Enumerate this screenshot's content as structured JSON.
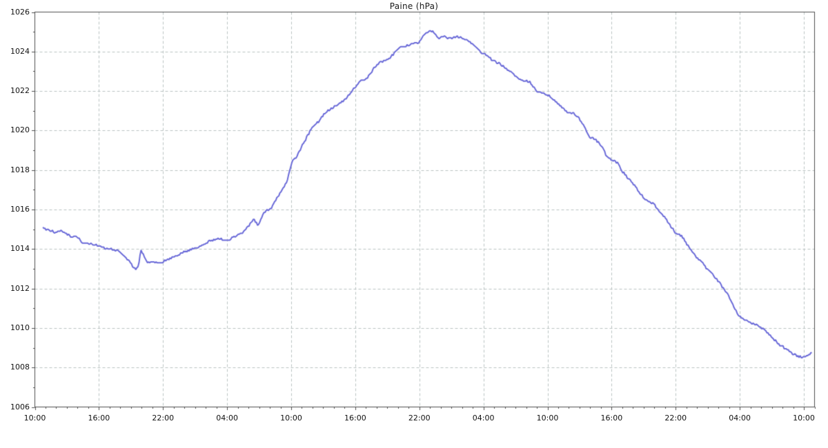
{
  "title": "Paine (hPa)",
  "colors": {
    "line": "#6a6ad8",
    "grid": "#b9c2c1",
    "axis": "#4c4c4c",
    "text": "#111111",
    "bg_top": "#cbdcdc",
    "bg_mid": "#f3f9f8",
    "bg_bottom": "#c4d7cf"
  },
  "chart_data": {
    "type": "line",
    "title": "Paine (hPa)",
    "xlabel": "",
    "ylabel": "",
    "legend_position": "none",
    "grid": true,
    "ylim": [
      1006,
      1026
    ],
    "y_ticks": [
      1006,
      1008,
      1010,
      1012,
      1014,
      1016,
      1018,
      1020,
      1022,
      1024,
      1026
    ],
    "y_minor_step": 1,
    "xlim_hours": [
      0,
      73
    ],
    "x_tick_hours": [
      0,
      6,
      12,
      18,
      24,
      30,
      36,
      42,
      48,
      54,
      60,
      66,
      72
    ],
    "x_tick_labels": [
      "10:00",
      "16:00",
      "22:00",
      "04:00",
      "10:00",
      "16:00",
      "22:00",
      "04:00",
      "10:00",
      "16:00",
      "22:00",
      "04:00",
      "10:00"
    ],
    "x_minor_step_hours": 1,
    "noise_amplitude_hpa": 0.05,
    "quantization_hpa": 0.05,
    "sample_step_hours": 0.1,
    "series": [
      {
        "name": "Paine",
        "unit": "hPa",
        "points": [
          [
            0.75,
            1015.1
          ],
          [
            1.2,
            1014.95
          ],
          [
            2,
            1014.85
          ],
          [
            2.6,
            1014.9
          ],
          [
            3,
            1014.75
          ],
          [
            3.5,
            1014.6
          ],
          [
            3.9,
            1014.65
          ],
          [
            4.4,
            1014.35
          ],
          [
            5,
            1014.3
          ],
          [
            5.6,
            1014.2
          ],
          [
            6,
            1014.15
          ],
          [
            6.6,
            1014.05
          ],
          [
            7.2,
            1014.0
          ],
          [
            7.8,
            1013.9
          ],
          [
            8.3,
            1013.7
          ],
          [
            8.8,
            1013.4
          ],
          [
            9.2,
            1013.1
          ],
          [
            9.5,
            1012.95
          ],
          [
            9.7,
            1013.2
          ],
          [
            9.95,
            1013.95
          ],
          [
            10.2,
            1013.7
          ],
          [
            10.5,
            1013.3
          ],
          [
            11,
            1013.4
          ],
          [
            11.4,
            1013.3
          ],
          [
            12,
            1013.35
          ],
          [
            12.5,
            1013.5
          ],
          [
            13,
            1013.6
          ],
          [
            13.6,
            1013.75
          ],
          [
            14,
            1013.85
          ],
          [
            14.5,
            1013.95
          ],
          [
            15,
            1014.05
          ],
          [
            15.5,
            1014.1
          ],
          [
            16,
            1014.3
          ],
          [
            16.6,
            1014.45
          ],
          [
            17.3,
            1014.55
          ],
          [
            17.9,
            1014.4
          ],
          [
            18.5,
            1014.55
          ],
          [
            19.3,
            1014.75
          ],
          [
            20.1,
            1015.2
          ],
          [
            20.5,
            1015.55
          ],
          [
            20.9,
            1015.2
          ],
          [
            21.4,
            1015.8
          ],
          [
            21.7,
            1015.95
          ],
          [
            22.1,
            1016.05
          ],
          [
            22.4,
            1016.35
          ],
          [
            22.8,
            1016.7
          ],
          [
            23.2,
            1017.0
          ],
          [
            23.6,
            1017.4
          ],
          [
            23.85,
            1017.95
          ],
          [
            24.1,
            1018.5
          ],
          [
            24.5,
            1018.65
          ],
          [
            25,
            1019.2
          ],
          [
            25.5,
            1019.7
          ],
          [
            26,
            1020.2
          ],
          [
            26.5,
            1020.4
          ],
          [
            27.1,
            1020.85
          ],
          [
            27.5,
            1021.0
          ],
          [
            28,
            1021.2
          ],
          [
            28.5,
            1021.4
          ],
          [
            29,
            1021.55
          ],
          [
            29.5,
            1021.85
          ],
          [
            30,
            1022.2
          ],
          [
            30.5,
            1022.5
          ],
          [
            31,
            1022.6
          ],
          [
            31.5,
            1022.95
          ],
          [
            32,
            1023.35
          ],
          [
            32.5,
            1023.5
          ],
          [
            33,
            1023.6
          ],
          [
            33.5,
            1023.8
          ],
          [
            34,
            1024.15
          ],
          [
            34.5,
            1024.25
          ],
          [
            35,
            1024.3
          ],
          [
            35.5,
            1024.4
          ],
          [
            36,
            1024.45
          ],
          [
            36.5,
            1024.9
          ],
          [
            37,
            1025.05
          ],
          [
            37.4,
            1025.0
          ],
          [
            37.8,
            1024.65
          ],
          [
            38.2,
            1024.75
          ],
          [
            39,
            1024.7
          ],
          [
            39.5,
            1024.75
          ],
          [
            40,
            1024.7
          ],
          [
            40.5,
            1024.6
          ],
          [
            41,
            1024.35
          ],
          [
            41.5,
            1024.1
          ],
          [
            42,
            1023.9
          ],
          [
            42.5,
            1023.7
          ],
          [
            43,
            1023.5
          ],
          [
            43.5,
            1023.4
          ],
          [
            44,
            1023.2
          ],
          [
            44.5,
            1023.0
          ],
          [
            45,
            1022.75
          ],
          [
            45.5,
            1022.55
          ],
          [
            46,
            1022.5
          ],
          [
            46.4,
            1022.45
          ],
          [
            46.7,
            1022.2
          ],
          [
            47,
            1021.95
          ],
          [
            47.5,
            1021.9
          ],
          [
            48,
            1021.8
          ],
          [
            48.5,
            1021.6
          ],
          [
            49,
            1021.35
          ],
          [
            49.5,
            1021.1
          ],
          [
            50,
            1020.9
          ],
          [
            50.5,
            1020.85
          ],
          [
            51,
            1020.55
          ],
          [
            51.5,
            1020.2
          ],
          [
            51.9,
            1019.65
          ],
          [
            52.4,
            1019.6
          ],
          [
            53,
            1019.25
          ],
          [
            53.5,
            1018.75
          ],
          [
            54,
            1018.5
          ],
          [
            54.5,
            1018.4
          ],
          [
            55,
            1017.95
          ],
          [
            55.5,
            1017.6
          ],
          [
            56,
            1017.35
          ],
          [
            56.5,
            1016.95
          ],
          [
            57,
            1016.6
          ],
          [
            57.5,
            1016.4
          ],
          [
            58,
            1016.25
          ],
          [
            58.5,
            1015.9
          ],
          [
            59,
            1015.6
          ],
          [
            59.5,
            1015.2
          ],
          [
            60,
            1014.8
          ],
          [
            60.4,
            1014.7
          ],
          [
            60.7,
            1014.6
          ],
          [
            61,
            1014.25
          ],
          [
            61.5,
            1013.9
          ],
          [
            62,
            1013.55
          ],
          [
            62.5,
            1013.3
          ],
          [
            63,
            1012.95
          ],
          [
            63.5,
            1012.7
          ],
          [
            64,
            1012.35
          ],
          [
            64.5,
            1012.0
          ],
          [
            65,
            1011.6
          ],
          [
            65.5,
            1011.0
          ],
          [
            66,
            1010.55
          ],
          [
            66.5,
            1010.4
          ],
          [
            67,
            1010.3
          ],
          [
            67.5,
            1010.15
          ],
          [
            68,
            1010.0
          ],
          [
            68.5,
            1009.8
          ],
          [
            69,
            1009.55
          ],
          [
            69.5,
            1009.25
          ],
          [
            70,
            1009.05
          ],
          [
            70.5,
            1008.9
          ],
          [
            71,
            1008.7
          ],
          [
            71.5,
            1008.55
          ],
          [
            72,
            1008.55
          ],
          [
            72.4,
            1008.6
          ],
          [
            72.8,
            1008.75
          ]
        ]
      }
    ]
  }
}
